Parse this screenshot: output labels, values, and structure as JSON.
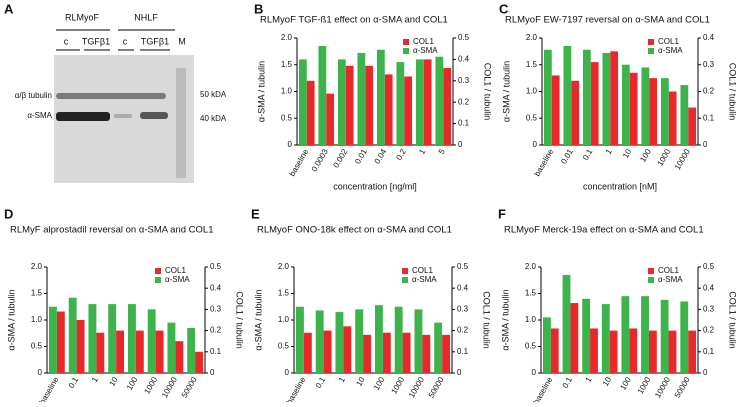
{
  "blot": {
    "label": "A",
    "groups": [
      "RLMyoF",
      "NHLF"
    ],
    "lanes": [
      "c",
      "TGFβ1",
      "c",
      "TGFβ1",
      "M"
    ],
    "bands": [
      "α/β tubulin",
      "α-SMA"
    ],
    "markers": [
      "50 kDA",
      "40 kDA"
    ]
  },
  "chart_data": [
    {
      "type": "bar",
      "label": "B",
      "title": "RLMyoF TGF-ß1 effect on α-SMA and COL1",
      "x_label": "concentration [ng/ml]",
      "y_label": "α-SMA / tubulin",
      "y2_label": "COL1 / tubulin",
      "categories": [
        "baseline",
        "0.0003",
        "0.002",
        "0.01",
        "0.04",
        "0.2",
        "1",
        "5"
      ],
      "series": [
        {
          "name": "COL1",
          "color": "#e8282b",
          "axis": "y2",
          "values": [
            0.3,
            0.24,
            0.37,
            0.37,
            0.33,
            0.32,
            0.4,
            0.36
          ]
        },
        {
          "name": "α-SMA",
          "color": "#3cb44b",
          "values": [
            1.6,
            1.85,
            1.6,
            1.72,
            1.78,
            1.55,
            1.6,
            1.65
          ]
        }
      ],
      "ylim": [
        0,
        2
      ],
      "yticks": [
        0,
        0.5,
        {
          "value": 1,
          "label": "1.0"
        },
        1.5,
        {
          "value": 2,
          "label": "2.0"
        }
      ],
      "y2lim": [
        0,
        0.5
      ],
      "y2ticks": [
        0,
        0.1,
        0.2,
        0.3,
        0.4,
        0.5
      ],
      "legend": "upper right"
    },
    {
      "type": "bar",
      "label": "C",
      "title": "RLMyoF EW-7197 reversal on α-SMA and COL1",
      "x_label": "concentration [nM]",
      "y_label": "α-SMA / tubulin",
      "y2_label": "COL1 / tubulin",
      "categories": [
        "baseline",
        "0.01",
        "0.1",
        "1",
        "10",
        "100",
        "1000",
        "10000"
      ],
      "series": [
        {
          "name": "COL1",
          "color": "#e8282b",
          "axis": "y2",
          "values": [
            0.26,
            0.24,
            0.31,
            0.35,
            0.27,
            0.25,
            0.2,
            0.14
          ]
        },
        {
          "name": "α-SMA",
          "color": "#3cb44b",
          "values": [
            1.78,
            1.85,
            1.78,
            1.72,
            1.5,
            1.45,
            1.25,
            1.12
          ]
        }
      ],
      "ylim": [
        0,
        2
      ],
      "yticks": [
        0,
        0.5,
        {
          "value": 1,
          "label": "1.0"
        },
        1.5,
        {
          "value": 2,
          "label": "2.0"
        }
      ],
      "y2lim": [
        0,
        0.4
      ],
      "y2ticks": [
        0,
        0.1,
        0.2,
        0.3,
        0.4
      ],
      "legend": "upper right"
    },
    {
      "type": "bar",
      "label": "D",
      "title": "RLMyF alprostadil reversal on α-SMA and COL1",
      "x_label": "concentration [nM]",
      "y_label": "α-SMA / tubulin",
      "y2_label": "COL1 / tubulin",
      "categories": [
        "baseline",
        "0.1",
        "1",
        "10",
        "100",
        "1000",
        "10000",
        "50000"
      ],
      "series": [
        {
          "name": "COL1",
          "color": "#e8282b",
          "axis": "y2",
          "values": [
            0.29,
            0.25,
            0.19,
            0.2,
            0.2,
            0.2,
            0.15,
            0.1
          ]
        },
        {
          "name": "α-SMA",
          "color": "#3cb44b",
          "values": [
            1.25,
            1.42,
            1.3,
            1.3,
            1.3,
            1.2,
            0.95,
            0.85
          ]
        }
      ],
      "ylim": [
        0,
        2
      ],
      "yticks": [
        0,
        0.5,
        {
          "value": 1,
          "label": "1.0"
        },
        1.5,
        {
          "value": 2,
          "label": "2.0"
        }
      ],
      "y2lim": [
        0,
        0.5
      ],
      "y2ticks": [
        0,
        0.1,
        0.2,
        0.3,
        0.4,
        0.5
      ],
      "legend": "upper right"
    },
    {
      "type": "bar",
      "label": "E",
      "title": "RLMyoF ONO-18k effect on α-SMA and COL1",
      "x_label": "concentration [nM]",
      "y_label": "α-SMA / tubulin",
      "y2_label": "COL1 / tubulin",
      "categories": [
        "baseline",
        "0.1",
        "1",
        "10",
        "100",
        "1000",
        "10000",
        "50000"
      ],
      "series": [
        {
          "name": "COL1",
          "color": "#e8282b",
          "axis": "y2",
          "values": [
            0.19,
            0.2,
            0.22,
            0.18,
            0.19,
            0.19,
            0.18,
            0.18
          ]
        },
        {
          "name": "α-SMA",
          "color": "#3cb44b",
          "values": [
            1.25,
            1.18,
            1.15,
            1.2,
            1.28,
            1.25,
            1.2,
            0.95
          ]
        }
      ],
      "ylim": [
        0,
        2
      ],
      "yticks": [
        0,
        0.5,
        {
          "value": 1,
          "label": "1.0"
        },
        1.5,
        {
          "value": 2,
          "label": "2.0"
        }
      ],
      "y2lim": [
        0,
        0.5
      ],
      "y2ticks": [
        0,
        0.1,
        0.2,
        0.3,
        0.4,
        0.5
      ],
      "legend": "upper right"
    },
    {
      "type": "bar",
      "label": "F",
      "title": "RLMyoF Merck-19a effect on α-SMA and COL1",
      "x_label": "concentration [nM]",
      "y_label": "α-SMA / tubulin",
      "y2_label": "COL1 / tubulin",
      "categories": [
        "baseline",
        "0.1",
        "1",
        "10",
        "100",
        "1000",
        "10000",
        "50000"
      ],
      "series": [
        {
          "name": "COL1",
          "color": "#e8282b",
          "axis": "y2",
          "values": [
            0.21,
            0.33,
            0.21,
            0.2,
            0.21,
            0.2,
            0.2,
            0.2
          ]
        },
        {
          "name": "α-SMA",
          "color": "#3cb44b",
          "values": [
            1.05,
            1.85,
            1.4,
            1.3,
            1.45,
            1.45,
            1.38,
            1.35
          ]
        }
      ],
      "ylim": [
        0,
        2
      ],
      "yticks": [
        0,
        0.5,
        {
          "value": 1,
          "label": "1.0"
        },
        1.5,
        {
          "value": 2,
          "label": "2.0"
        }
      ],
      "y2lim": [
        0,
        0.5
      ],
      "y2ticks": [
        0,
        0.1,
        0.2,
        0.3,
        0.4,
        0.5
      ],
      "legend": "upper right"
    }
  ]
}
